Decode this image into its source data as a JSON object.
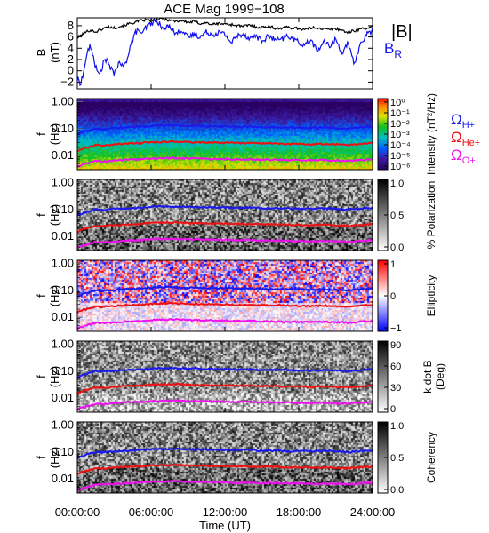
{
  "figure": {
    "title": "ACE Mag 1999−108",
    "x_tick_labels": [
      "00:00:00",
      "06:00:00",
      "12:00:00",
      "18:00:00",
      "24:00:00"
    ],
    "x_label": "Time (UT)"
  },
  "legend": {
    "b_total": "|B|",
    "b_radial_base": "B",
    "b_radial_sub": "R",
    "omega": "Ω",
    "h_sub": "H+",
    "he_sub": "He+",
    "o_sub": "O+"
  },
  "colors": {
    "b_total": "#000000",
    "b_radial": "#1010ee",
    "omega_h": "#1a1aee",
    "omega_he": "#ee1111",
    "omega_o": "#ee11ee"
  },
  "chart_data": [
    {
      "type": "line",
      "panel": "magnetic-field",
      "ylabel_line1": "B",
      "ylabel_line2": "(nT)",
      "y_tick_labels": [
        "8",
        "6",
        "4",
        "2",
        "0",
        "−2"
      ],
      "ylim": [
        -3.2,
        9.4
      ],
      "xlim": [
        0,
        24
      ],
      "series": [
        {
          "name": "|B|",
          "x": [
            0,
            0.5,
            1,
            1.5,
            2,
            2.5,
            3,
            3.5,
            4,
            4.5,
            5,
            5.5,
            6,
            6.5,
            7,
            7.5,
            8,
            8.5,
            9,
            9.5,
            10,
            10.5,
            11,
            11.5,
            12,
            12.5,
            13,
            13.5,
            14,
            14.5,
            15,
            15.5,
            16,
            16.5,
            17,
            17.5,
            18,
            18.5,
            19,
            19.5,
            20,
            20.5,
            21,
            21.5,
            22,
            22.5,
            23,
            23.5,
            24
          ],
          "y": [
            5.8,
            6.6,
            7.2,
            6.9,
            7.4,
            7.8,
            7.6,
            7.9,
            8.2,
            8.5,
            8.8,
            9.0,
            8.9,
            9.1,
            9.2,
            9.0,
            8.8,
            8.9,
            8.6,
            8.7,
            8.4,
            8.5,
            8.2,
            8.4,
            8.3,
            8.2,
            8.0,
            7.9,
            8.1,
            7.8,
            7.7,
            7.9,
            7.6,
            7.5,
            7.8,
            7.6,
            7.5,
            7.3,
            7.6,
            7.7,
            7.4,
            7.3,
            7.5,
            7.2,
            6.8,
            7.1,
            7.4,
            7.6,
            7.7
          ]
        },
        {
          "name": "B_R",
          "x": [
            0,
            0.25,
            0.5,
            0.75,
            1,
            1.25,
            1.5,
            1.75,
            2,
            2.25,
            2.5,
            2.75,
            3,
            3.25,
            3.5,
            3.75,
            4,
            4.25,
            4.5,
            4.75,
            5,
            5.25,
            5.5,
            6,
            6.5,
            7,
            7.5,
            8,
            8.5,
            9,
            9.5,
            10,
            10.5,
            11,
            11.5,
            12,
            12.5,
            13,
            13.5,
            14,
            14.5,
            15,
            15.5,
            16,
            16.5,
            17,
            17.5,
            18,
            18.5,
            19,
            19.5,
            20,
            20.5,
            21,
            21.5,
            22,
            22.5,
            23,
            23.5,
            24
          ],
          "y": [
            -1.5,
            -2.2,
            -0.5,
            2.8,
            4.3,
            3.1,
            0.6,
            -0.8,
            0.5,
            2.2,
            1.4,
            0.2,
            -0.4,
            0.9,
            1.3,
            0.6,
            1.8,
            4.0,
            5.5,
            6.8,
            7.4,
            6.2,
            7.5,
            8.4,
            8.9,
            7.2,
            8.1,
            6.5,
            7.3,
            5.8,
            6.6,
            6.0,
            6.9,
            6.4,
            6.8,
            6.5,
            5.0,
            6.2,
            6.6,
            5.7,
            6.3,
            5.2,
            6.1,
            5.6,
            5.3,
            6.2,
            5.8,
            5.0,
            4.6,
            5.5,
            3.4,
            5.1,
            4.4,
            5.6,
            3.2,
            4.8,
            1.2,
            4.6,
            6.4,
            7.2
          ]
        }
      ]
    },
    {
      "type": "heatmap",
      "panel": "intensity",
      "ylabel_line1": "f",
      "ylabel_line2": "(Hz)",
      "y_scale": "log",
      "ylim": [
        0.003,
        1.3
      ],
      "y_tick_labels": [
        "1.00",
        "0.10",
        "0.01"
      ],
      "colorbar_label": "Intensity (nT²/Hz)",
      "colorbar_ticks": [
        "10⁰",
        "10⁻¹",
        "10⁻²",
        "10⁻³",
        "10⁻⁴",
        "10⁻⁵",
        "10⁻⁶"
      ],
      "colorbar_range": [
        1e-06,
        1
      ],
      "colormap": "rainbow"
    },
    {
      "type": "heatmap",
      "panel": "polarization",
      "ylabel_line1": "f",
      "ylabel_line2": "(Hz)",
      "y_scale": "log",
      "y_tick_labels": [
        "1.00",
        "0.10",
        "0.01"
      ],
      "colorbar_label": "% Polarization",
      "colorbar_ticks": [
        "1.0",
        "0.5",
        "0.0"
      ],
      "colorbar_range": [
        0,
        1
      ],
      "colormap": "grayscale"
    },
    {
      "type": "heatmap",
      "panel": "ellipticity",
      "ylabel_line1": "f",
      "ylabel_line2": "(Hz)",
      "y_scale": "log",
      "y_tick_labels": [
        "1.00",
        "0.10",
        "0.01"
      ],
      "colorbar_label": "Ellipticity",
      "colorbar_ticks": [
        "1",
        "0",
        "−1"
      ],
      "colorbar_range": [
        -1,
        1
      ],
      "colormap": "blue-white-red"
    },
    {
      "type": "heatmap",
      "panel": "k-dot-b",
      "ylabel_line1": "f",
      "ylabel_line2": "(Hz)",
      "y_scale": "log",
      "y_tick_labels": [
        "1.00",
        "0.10",
        "0.01"
      ],
      "colorbar_label_line1": "k dot B",
      "colorbar_label_line2": "(Deg)",
      "colorbar_ticks": [
        "90",
        "60",
        "30",
        "0"
      ],
      "colorbar_range": [
        0,
        90
      ],
      "colormap": "grayscale"
    },
    {
      "type": "heatmap",
      "panel": "coherency",
      "ylabel_line1": "f",
      "ylabel_line2": "(Hz)",
      "y_scale": "log",
      "y_tick_labels": [
        "1.00",
        "0.10",
        "0.01"
      ],
      "colorbar_label": "Coherency",
      "colorbar_ticks": [
        "1.0",
        "0.5",
        "0.0"
      ],
      "colorbar_range": [
        0,
        1
      ],
      "colormap": "grayscale"
    }
  ],
  "gyrofrequency_lines": {
    "x": [
      0,
      0.5,
      1,
      1.5,
      2,
      3,
      4,
      5,
      6,
      7,
      8,
      9,
      10,
      11,
      12,
      13,
      14,
      15,
      16,
      17,
      18,
      19,
      20,
      21,
      22,
      23,
      24
    ],
    "omega_h_hz": [
      0.06,
      0.075,
      0.085,
      0.1,
      0.095,
      0.105,
      0.11,
      0.115,
      0.125,
      0.13,
      0.13,
      0.125,
      0.125,
      0.12,
      0.12,
      0.115,
      0.118,
      0.11,
      0.112,
      0.108,
      0.108,
      0.105,
      0.11,
      0.105,
      0.1,
      0.11,
      0.115
    ],
    "omega_he_hz": [
      0.015,
      0.019,
      0.021,
      0.025,
      0.024,
      0.026,
      0.028,
      0.029,
      0.031,
      0.032,
      0.033,
      0.031,
      0.031,
      0.03,
      0.03,
      0.029,
      0.029,
      0.028,
      0.028,
      0.027,
      0.027,
      0.026,
      0.027,
      0.026,
      0.025,
      0.027,
      0.029
    ],
    "omega_o_hz": [
      0.0038,
      0.0047,
      0.0053,
      0.0062,
      0.006,
      0.0065,
      0.007,
      0.0072,
      0.0078,
      0.008,
      0.0082,
      0.0078,
      0.0078,
      0.0075,
      0.0075,
      0.0072,
      0.0073,
      0.007,
      0.007,
      0.0068,
      0.0068,
      0.0066,
      0.0068,
      0.0066,
      0.0063,
      0.0068,
      0.0072
    ]
  }
}
